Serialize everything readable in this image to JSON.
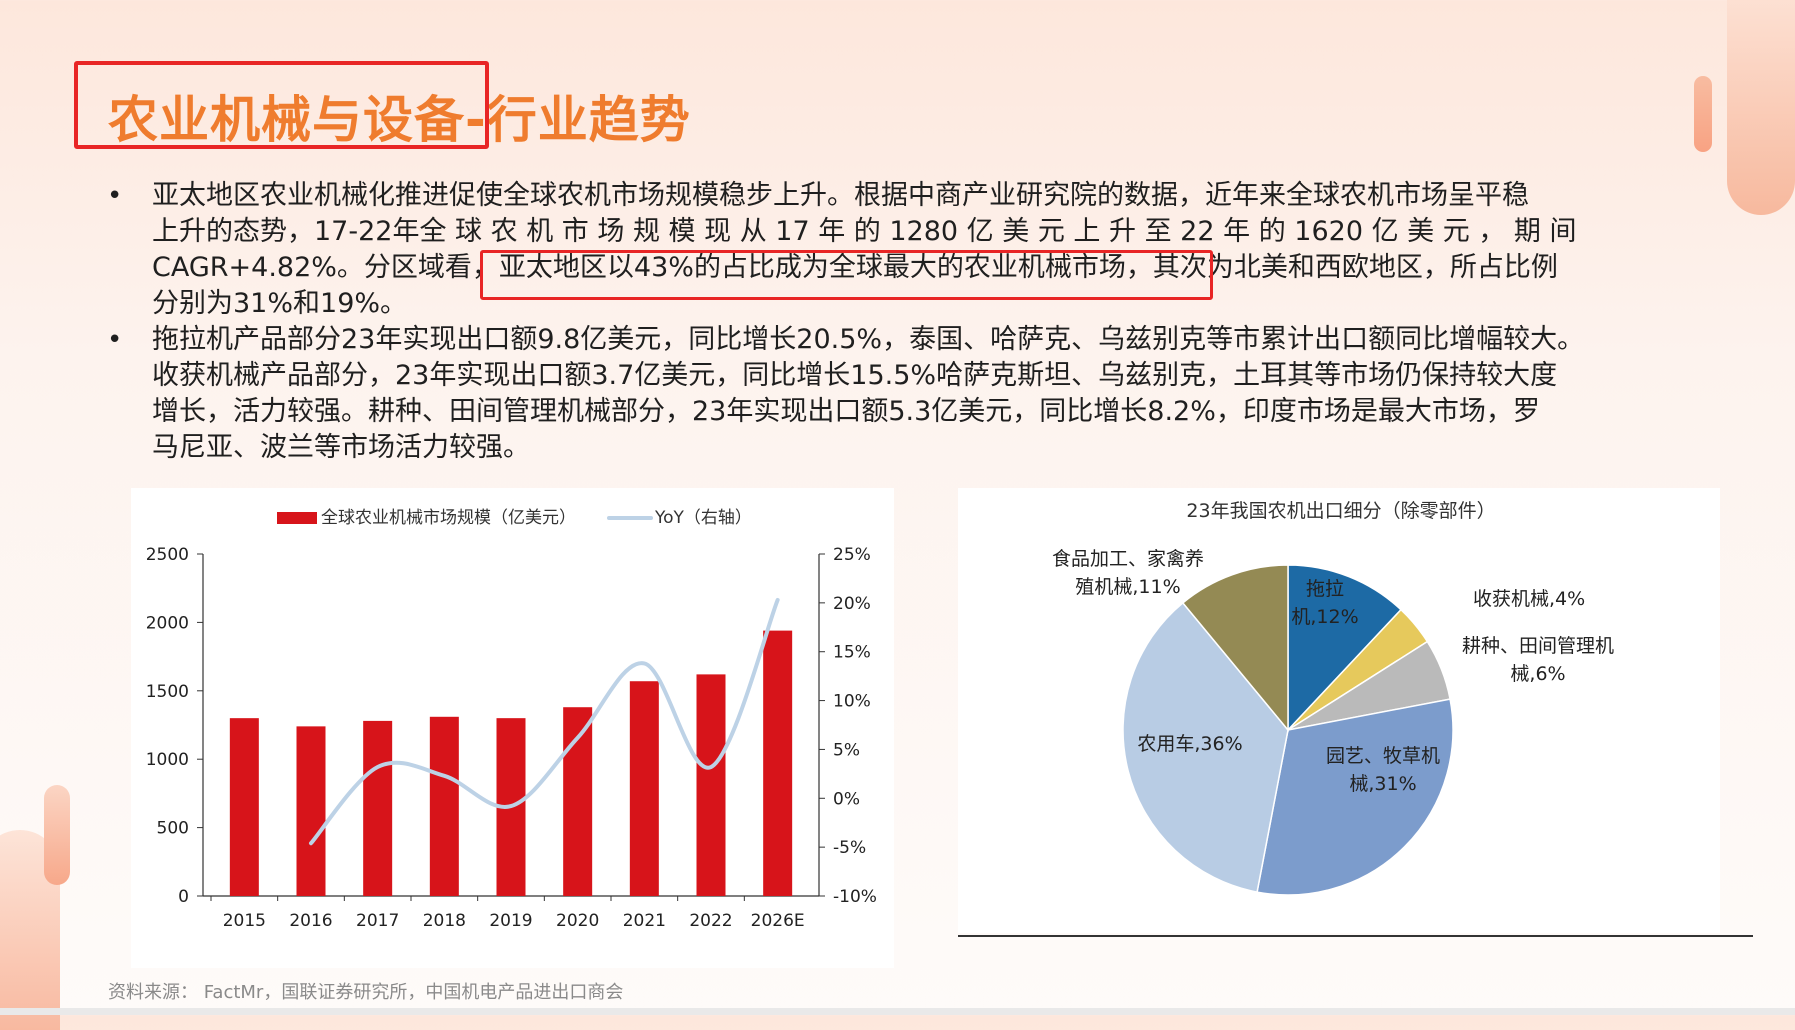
{
  "slide": {
    "title": "农业机械与设备-行业趋势",
    "bullets": [
      {
        "lines": [
          "亚太地区农业机械化推进促使全球农机市场规模稳步上升。根据中商产业研究院的数据，近年来全球农机市场呈平稳",
          "上升的态势，17-22年全 球 农 机 市 场 规 模 现 从 17 年 的 1280 亿 美 元 上 升 至 22 年 的 1620 亿 美 元 ， 期 间",
          "CAGR+4.82%。分区域看，亚太地区以43%的占比成为全球最大的农业机械市场，其次为北美和西欧地区，所占比例",
          "分别为31%和19%。"
        ]
      },
      {
        "lines": [
          "拖拉机产品部分23年实现出口额9.8亿美元，同比增长20.5%，泰国、哈萨克、乌兹别克等市累计出口额同比增幅较大。",
          "收获机械产品部分，23年实现出口额3.7亿美元，同比增长15.5%哈萨克斯坦、乌兹别克，土耳其等市场仍保持较大度",
          "增长，活力较强。耕种、田间管理机械部分，23年实现出口额5.3亿美元，同比增长8.2%，印度市场是最大市场，罗",
          "马尼亚、波兰等市场活力较强。"
        ]
      }
    ],
    "source": "资料来源： FactMr，国联证券研究所，中国机电产品进出口商会"
  },
  "chart_data": [
    {
      "type": "bar",
      "title": "",
      "categories": [
        "2015",
        "2016",
        "2017",
        "2018",
        "2019",
        "2020",
        "2021",
        "2022",
        "2026E"
      ],
      "series": [
        {
          "name": "全球农业机械市场规模（亿美元）",
          "axis": "left",
          "kind": "bar",
          "color": "#d7141a",
          "values": [
            1300,
            1240,
            1280,
            1310,
            1300,
            1380,
            1570,
            1620,
            1940
          ]
        },
        {
          "name": "YoY（右轴）",
          "axis": "right",
          "kind": "line",
          "color": "#bdd2e6",
          "values": [
            null,
            -4.6,
            3.2,
            2.3,
            -0.8,
            6.2,
            13.8,
            3.2,
            20.3
          ]
        }
      ],
      "y_left": {
        "min": 0,
        "max": 2500,
        "ticks": [
          "0",
          "500",
          "1000",
          "1500",
          "2000",
          "2500"
        ]
      },
      "y_right": {
        "min": -10,
        "max": 25,
        "ticks": [
          "-10%",
          "-5%",
          "0%",
          "5%",
          "10%",
          "15%",
          "20%",
          "25%"
        ]
      },
      "legend": "top",
      "grid": false
    },
    {
      "type": "pie",
      "title": "23年我国农机出口细分（除零部件）",
      "slices": [
        {
          "label": [
            "拖拉",
            "机,12%"
          ],
          "value": 12,
          "color": "#1d6aa5"
        },
        {
          "label": [
            "收获机械,4%"
          ],
          "value": 4,
          "color": "#e6c95c"
        },
        {
          "label": [
            "耕种、田间管理机",
            "械,6%"
          ],
          "value": 6,
          "color": "#bababa"
        },
        {
          "label": [
            "园艺、牧草机",
            "械,31%"
          ],
          "value": 31,
          "color": "#7c9ccc"
        },
        {
          "label": [
            "农用车,36%"
          ],
          "value": 36,
          "color": "#b8cce4"
        },
        {
          "label": [
            "食品加工、家禽养",
            "殖机械,11%"
          ],
          "value": 11,
          "color": "#948a54"
        }
      ]
    }
  ]
}
